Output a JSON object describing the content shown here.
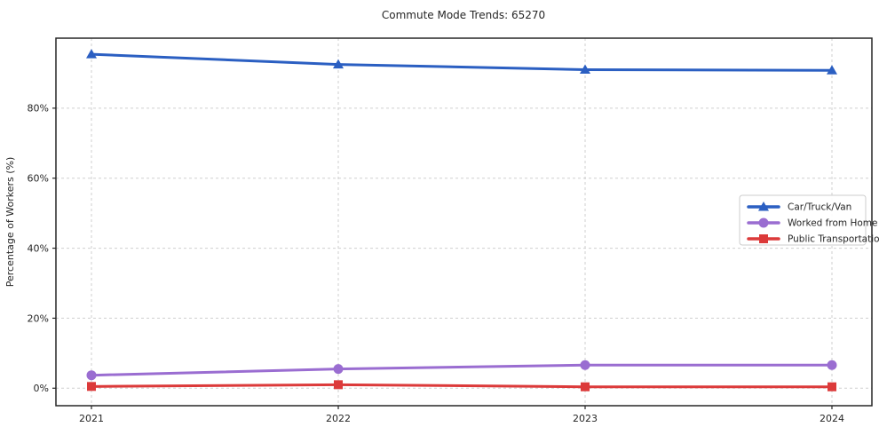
{
  "chart_data": {
    "type": "line",
    "title": "Commute Mode Trends: 65270",
    "xlabel": "",
    "ylabel": "Percentage of Workers (%)",
    "categories": [
      "2021",
      "2022",
      "2023",
      "2024"
    ],
    "series": [
      {
        "name": "Car/Truck/Van",
        "marker": "triangle",
        "color": "#2b5fc2",
        "values": [
          95.4,
          92.5,
          91.0,
          90.8
        ]
      },
      {
        "name": "Worked from Home",
        "marker": "circle",
        "color": "#9a6dd1",
        "values": [
          3.7,
          5.5,
          6.6,
          6.6
        ]
      },
      {
        "name": "Public Transportation",
        "marker": "square",
        "color": "#dc3a3a",
        "values": [
          0.5,
          1.0,
          0.4,
          0.4
        ]
      }
    ],
    "ylim": [
      -5,
      100
    ],
    "yticks": {
      "values": [
        0,
        20,
        40,
        60,
        80
      ],
      "labels": [
        "0%",
        "20%",
        "40%",
        "60%",
        "80%"
      ]
    },
    "grid": true,
    "legend_position": "center right"
  }
}
